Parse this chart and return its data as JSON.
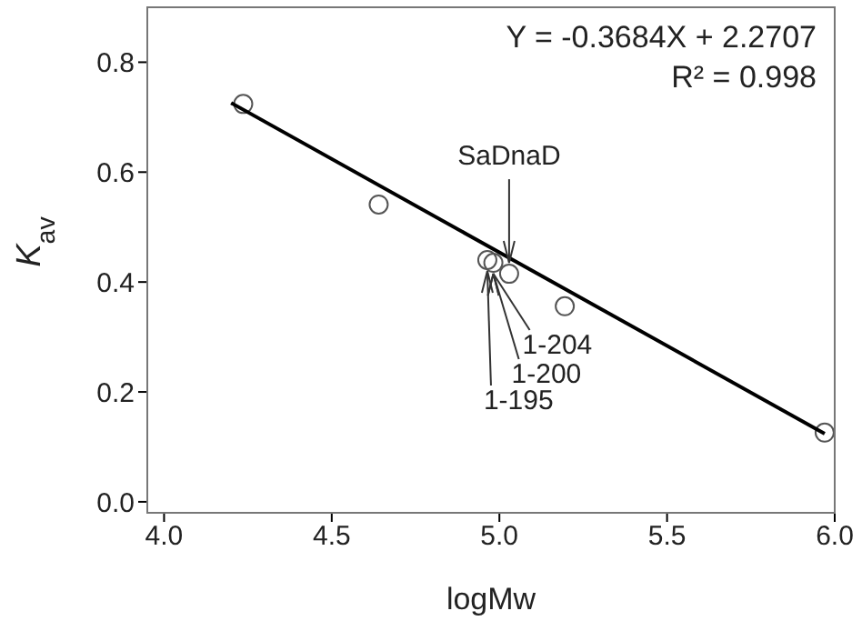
{
  "chart_data": {
    "type": "scatter",
    "xlabel": "logMw",
    "ylabel": "K$_{av}$",
    "xlim": [
      3.95,
      6.0
    ],
    "ylim": [
      -0.02,
      0.9
    ],
    "xticks": [
      {
        "value": 4,
        "label": "4.0"
      },
      4.5,
      {
        "value": 5,
        "label": "5.0"
      },
      5.5,
      {
        "value": 6,
        "label": "6.0"
      }
    ],
    "yticks": [
      {
        "value": 0,
        "label": "0.0"
      },
      0.2,
      0.4,
      0.6,
      0.8
    ],
    "grid": false,
    "legend": false,
    "series": [
      {
        "marker": "circle",
        "color": "#555555",
        "x": [
          4.236,
          4.64,
          4.964,
          4.982,
          5.029,
          5.195,
          5.97
        ],
        "values": [
          0.724,
          0.541,
          0.44,
          0.435,
          0.415,
          0.356,
          0.126
        ]
      },
      {
        "type": "line",
        "color": "#000000",
        "x": [
          4.2,
          5.97
        ],
        "values": [
          0.726,
          0.124
        ]
      }
    ],
    "annotations": [
      "Y = -0.3684X + 2.2707",
      "R² = 0.998",
      {
        "text": "SaDnaD",
        "x": 5.029,
        "y": 0.415
      },
      {
        "text": "1-204",
        "x": 4.982,
        "y": 0.435
      },
      {
        "text": "1-200",
        "x": 4.982,
        "y": 0.435
      },
      {
        "text": "1-195",
        "x": 4.964,
        "y": 0.44
      }
    ]
  }
}
